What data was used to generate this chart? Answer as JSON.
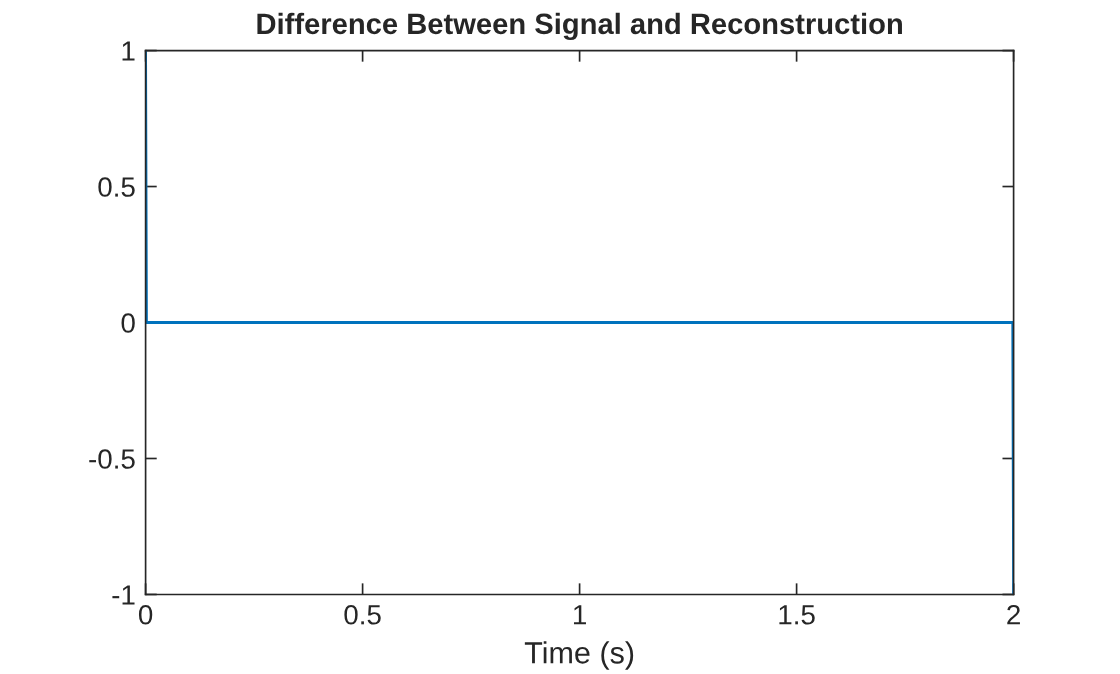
{
  "chart_data": {
    "type": "line",
    "title": "Difference Between Signal and Reconstruction",
    "xlabel": "Time (s)",
    "x": [
      0,
      0.002,
      1.998,
      2
    ],
    "series": [
      {
        "color": "#0072bd",
        "values": [
          1,
          0,
          0,
          -1
        ]
      }
    ],
    "xlim": [
      0,
      2
    ],
    "xticks": [
      0,
      0.5,
      1,
      1.5,
      2
    ],
    "ylim": [
      -1,
      1
    ],
    "yticks": [
      -1,
      -0.5,
      0,
      0.5,
      1
    ],
    "grid": false,
    "legend": false
  }
}
